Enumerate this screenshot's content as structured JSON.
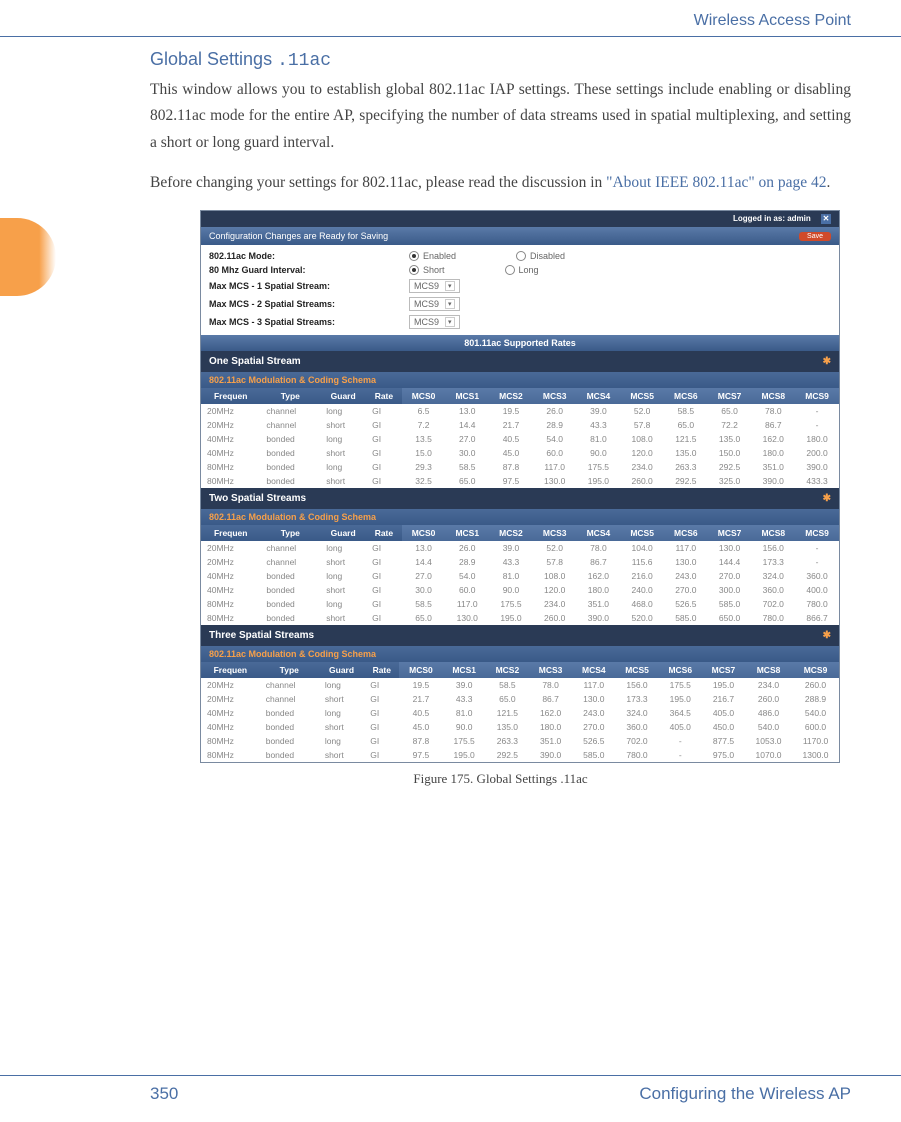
{
  "header": {
    "chapter_title": "Wireless Access Point"
  },
  "section": {
    "title_prefix": "Global Settings ",
    "title_mono": ".11ac",
    "para1": "This window allows you to establish global 802.11ac IAP settings. These settings include enabling or disabling 802.11ac mode for the entire AP, specifying the number of data streams used in spatial multiplexing, and setting a short or long guard interval.",
    "para2_pre": "Before changing your settings for 802.11ac, please read the discussion in ",
    "para2_link": "\"About IEEE 802.11ac\" on page 42",
    "para2_post": "."
  },
  "screenshot": {
    "logged_in": "Logged in as: admin",
    "config_msg": "Configuration Changes are Ready for Saving",
    "save_btn": "Save",
    "settings": {
      "mode": {
        "label": "802.11ac Mode:",
        "opt1": "Enabled",
        "opt2": "Disabled",
        "selected": "Enabled"
      },
      "guard": {
        "label": "80 Mhz Guard Interval:",
        "opt1": "Short",
        "opt2": "Long",
        "selected": "Short"
      },
      "mcs1": {
        "label": "Max MCS - 1 Spatial Stream:",
        "value": "MCS9"
      },
      "mcs2": {
        "label": "Max MCS - 2 Spatial Streams:",
        "value": "MCS9"
      },
      "mcs3": {
        "label": "Max MCS - 3 Spatial Streams:",
        "value": "MCS9"
      }
    },
    "rates_title": "801.11ac Supported Rates",
    "stream_titles": {
      "one": "One Spatial Stream",
      "two": "Two Spatial Streams",
      "three": "Three Spatial Streams"
    },
    "sub_header": "802.11ac Modulation & Coding Schema",
    "col_headers_left": [
      "Frequen",
      "Type",
      "Guard",
      "Rate"
    ],
    "col_headers_mcs": [
      "MCS0",
      "MCS1",
      "MCS2",
      "MCS3",
      "MCS4",
      "MCS5",
      "MCS6",
      "MCS7",
      "MCS8",
      "MCS9"
    ],
    "one": [
      [
        "20MHz",
        "channel",
        "long",
        "GI",
        "6.5",
        "13.0",
        "19.5",
        "26.0",
        "39.0",
        "52.0",
        "58.5",
        "65.0",
        "78.0",
        "-"
      ],
      [
        "20MHz",
        "channel",
        "short",
        "GI",
        "7.2",
        "14.4",
        "21.7",
        "28.9",
        "43.3",
        "57.8",
        "65.0",
        "72.2",
        "86.7",
        "-"
      ],
      [
        "40MHz",
        "bonded",
        "long",
        "GI",
        "13.5",
        "27.0",
        "40.5",
        "54.0",
        "81.0",
        "108.0",
        "121.5",
        "135.0",
        "162.0",
        "180.0"
      ],
      [
        "40MHz",
        "bonded",
        "short",
        "GI",
        "15.0",
        "30.0",
        "45.0",
        "60.0",
        "90.0",
        "120.0",
        "135.0",
        "150.0",
        "180.0",
        "200.0"
      ],
      [
        "80MHz",
        "bonded",
        "long",
        "GI",
        "29.3",
        "58.5",
        "87.8",
        "117.0",
        "175.5",
        "234.0",
        "263.3",
        "292.5",
        "351.0",
        "390.0"
      ],
      [
        "80MHz",
        "bonded",
        "short",
        "GI",
        "32.5",
        "65.0",
        "97.5",
        "130.0",
        "195.0",
        "260.0",
        "292.5",
        "325.0",
        "390.0",
        "433.3"
      ]
    ],
    "two": [
      [
        "20MHz",
        "channel",
        "long",
        "GI",
        "13.0",
        "26.0",
        "39.0",
        "52.0",
        "78.0",
        "104.0",
        "117.0",
        "130.0",
        "156.0",
        "-"
      ],
      [
        "20MHz",
        "channel",
        "short",
        "GI",
        "14.4",
        "28.9",
        "43.3",
        "57.8",
        "86.7",
        "115.6",
        "130.0",
        "144.4",
        "173.3",
        "-"
      ],
      [
        "40MHz",
        "bonded",
        "long",
        "GI",
        "27.0",
        "54.0",
        "81.0",
        "108.0",
        "162.0",
        "216.0",
        "243.0",
        "270.0",
        "324.0",
        "360.0"
      ],
      [
        "40MHz",
        "bonded",
        "short",
        "GI",
        "30.0",
        "60.0",
        "90.0",
        "120.0",
        "180.0",
        "240.0",
        "270.0",
        "300.0",
        "360.0",
        "400.0"
      ],
      [
        "80MHz",
        "bonded",
        "long",
        "GI",
        "58.5",
        "117.0",
        "175.5",
        "234.0",
        "351.0",
        "468.0",
        "526.5",
        "585.0",
        "702.0",
        "780.0"
      ],
      [
        "80MHz",
        "bonded",
        "short",
        "GI",
        "65.0",
        "130.0",
        "195.0",
        "260.0",
        "390.0",
        "520.0",
        "585.0",
        "650.0",
        "780.0",
        "866.7"
      ]
    ],
    "three": [
      [
        "20MHz",
        "channel",
        "long",
        "GI",
        "19.5",
        "39.0",
        "58.5",
        "78.0",
        "117.0",
        "156.0",
        "175.5",
        "195.0",
        "234.0",
        "260.0"
      ],
      [
        "20MHz",
        "channel",
        "short",
        "GI",
        "21.7",
        "43.3",
        "65.0",
        "86.7",
        "130.0",
        "173.3",
        "195.0",
        "216.7",
        "260.0",
        "288.9"
      ],
      [
        "40MHz",
        "bonded",
        "long",
        "GI",
        "40.5",
        "81.0",
        "121.5",
        "162.0",
        "243.0",
        "324.0",
        "364.5",
        "405.0",
        "486.0",
        "540.0"
      ],
      [
        "40MHz",
        "bonded",
        "short",
        "GI",
        "45.0",
        "90.0",
        "135.0",
        "180.0",
        "270.0",
        "360.0",
        "405.0",
        "450.0",
        "540.0",
        "600.0"
      ],
      [
        "80MHz",
        "bonded",
        "long",
        "GI",
        "87.8",
        "175.5",
        "263.3",
        "351.0",
        "526.5",
        "702.0",
        "-",
        "877.5",
        "1053.0",
        "1170.0"
      ],
      [
        "80MHz",
        "bonded",
        "short",
        "GI",
        "97.5",
        "195.0",
        "292.5",
        "390.0",
        "585.0",
        "780.0",
        "-",
        "975.0",
        "1070.0",
        "1300.0"
      ]
    ]
  },
  "figure_caption": "Figure 175. Global Settings .11ac",
  "footer": {
    "page_num": "350",
    "section_name": "Configuring the Wireless AP"
  },
  "colors": {
    "brand_blue": "#4a6fa5",
    "dark_blue": "#2a3a55",
    "mid_blue": "#3a5a88",
    "orange": "#f7a04a",
    "red_btn": "#d04a2a",
    "text_gray": "#888"
  }
}
